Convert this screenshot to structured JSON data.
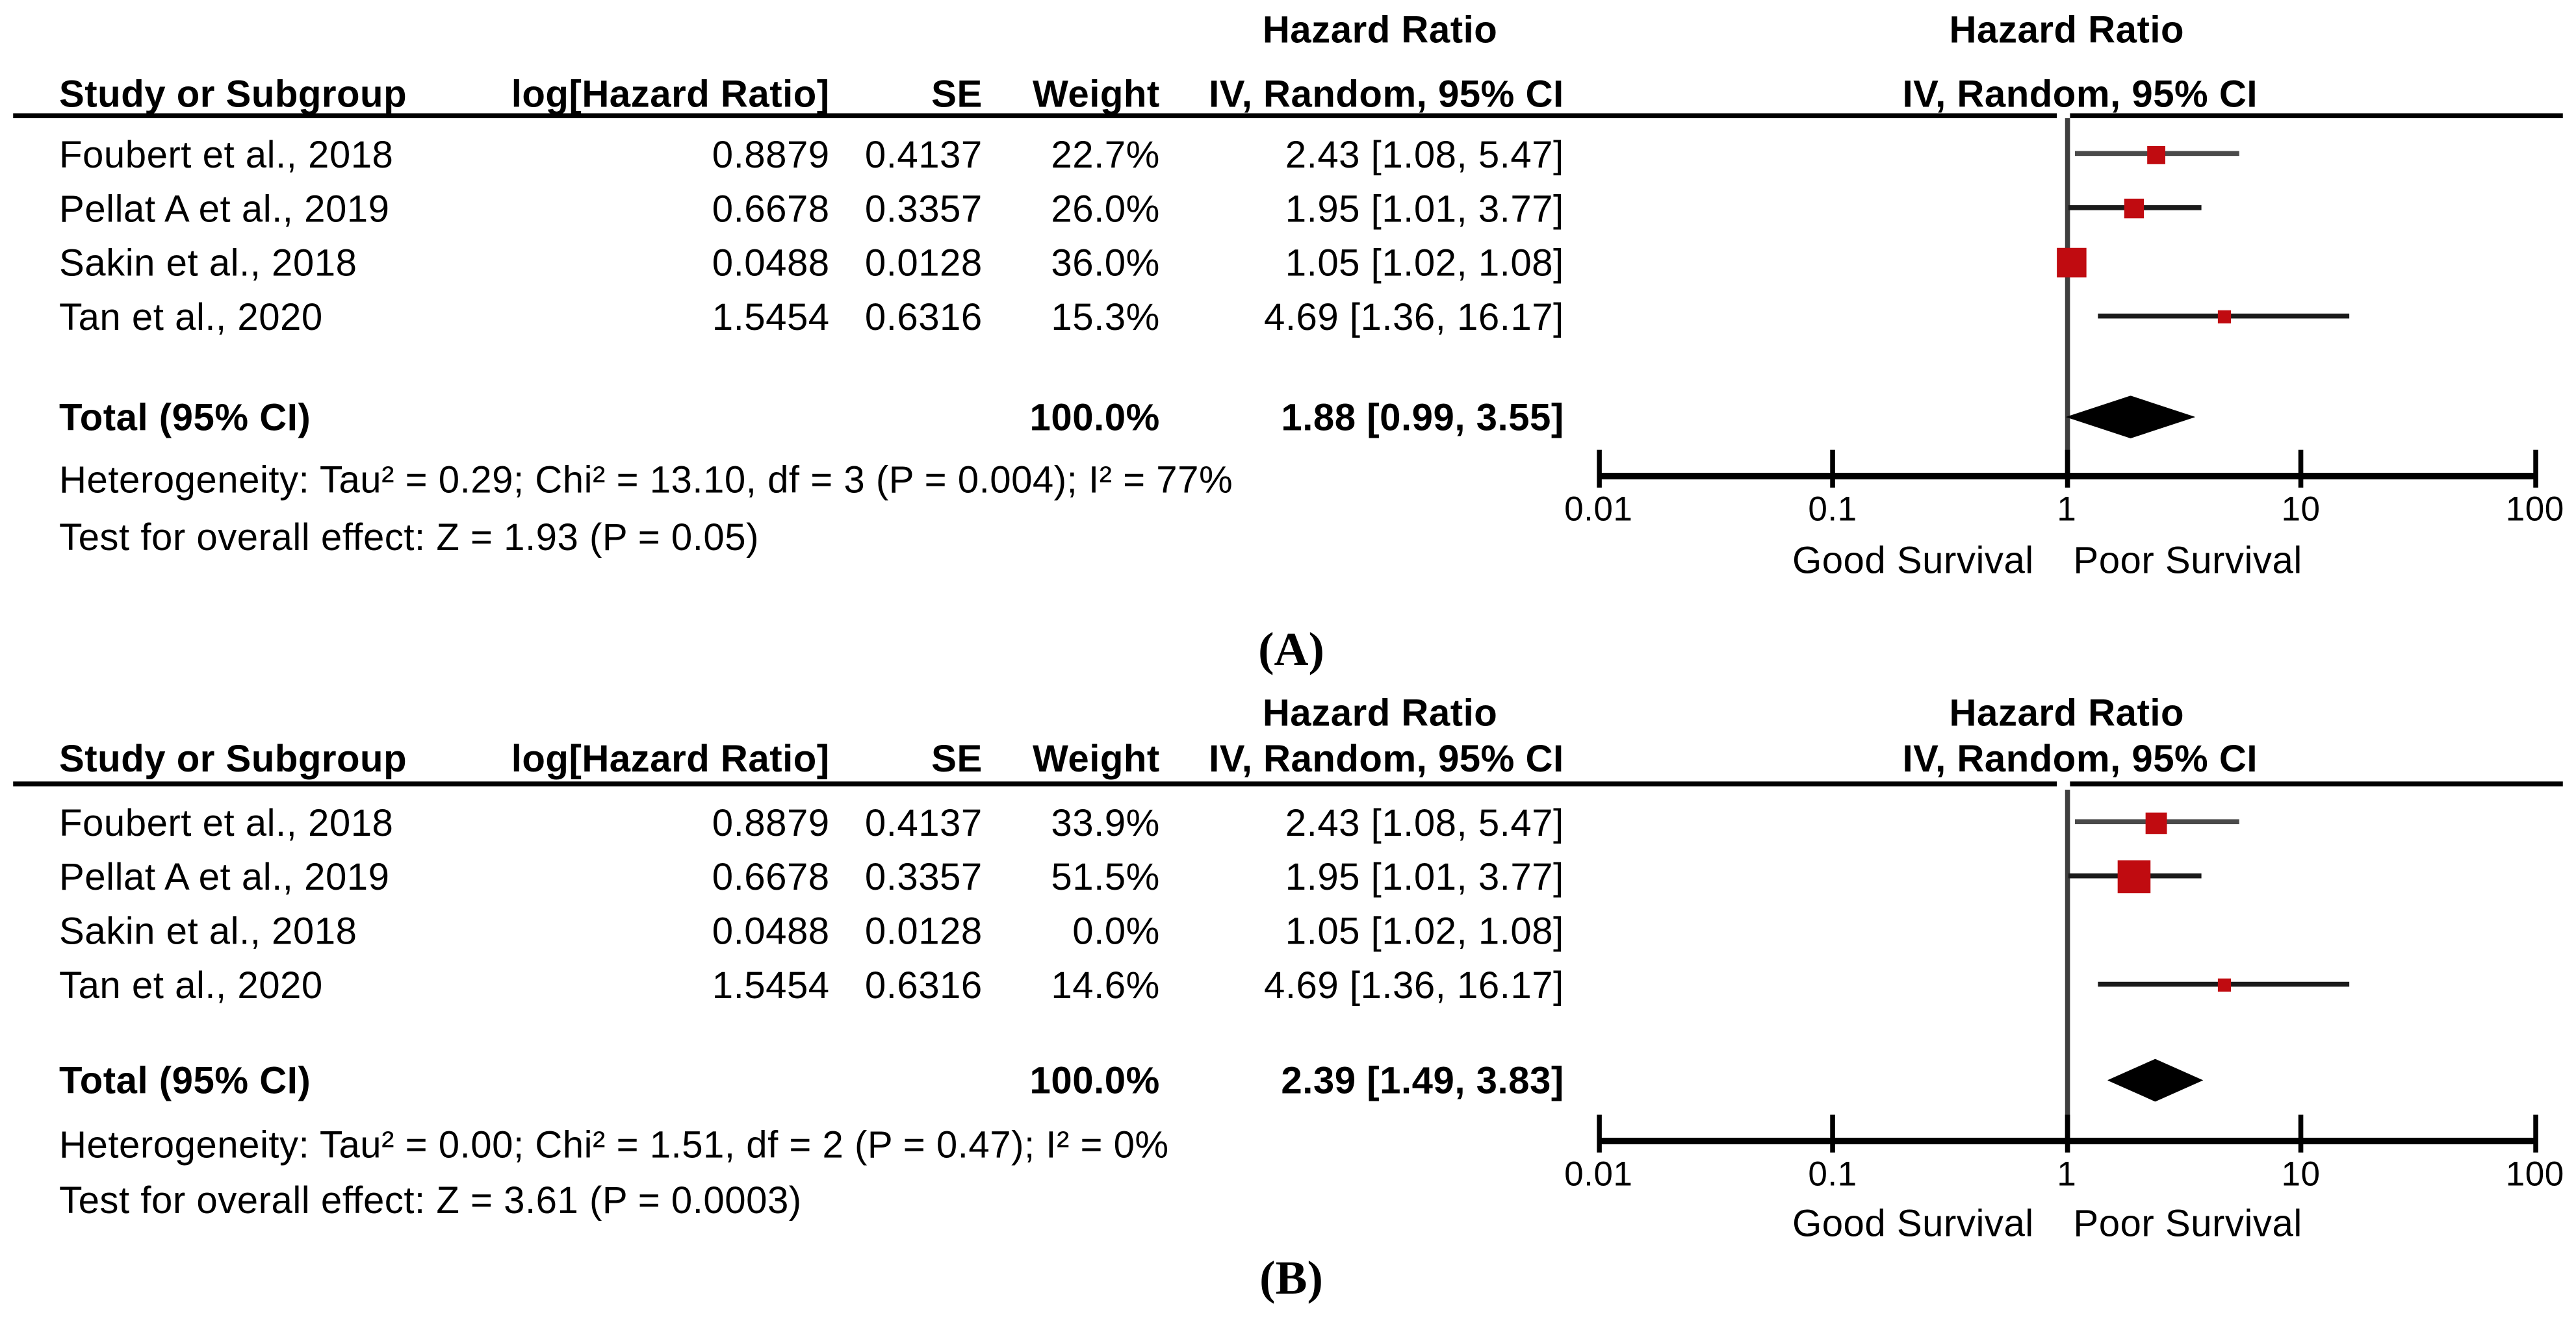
{
  "figure_type": "forest-plot-meta-analysis",
  "chart_data": [
    {
      "type": "forest",
      "panel_label": "(A)",
      "col_headers": {
        "study": "Study or Subgroup",
        "log_hr": "log[Hazard Ratio]",
        "se": "SE",
        "weight": "Weight",
        "effect_top": "Hazard Ratio",
        "effect": "IV, Random, 95% CI"
      },
      "plot_headers": {
        "top": "Hazard Ratio",
        "sub": "IV, Random, 95% CI"
      },
      "studies": [
        {
          "name": "Foubert et al., 2018",
          "log_hr": "0.8879",
          "se": "0.4137",
          "weight": "22.7%",
          "effect": "2.43 [1.08, 5.47]",
          "hr": 2.43,
          "ci_low": 1.08,
          "ci_high": 5.47,
          "marker_px": 11,
          "ci_color": "#4a4a4a"
        },
        {
          "name": "Pellat A et al., 2019",
          "log_hr": "0.6678",
          "se": "0.3357",
          "weight": "26.0%",
          "effect": "1.95 [1.01, 3.77]",
          "hr": 1.95,
          "ci_low": 1.01,
          "ci_high": 3.77,
          "marker_px": 12,
          "ci_color": "#1a1a1a"
        },
        {
          "name": "Sakin et al., 2018",
          "log_hr": "0.0488",
          "se": "0.0128",
          "weight": "36.0%",
          "effect": "1.05 [1.02, 1.08]",
          "hr": 1.05,
          "ci_low": 1.02,
          "ci_high": 1.08,
          "marker_px": 18,
          "ci_color": "#1a1a1a"
        },
        {
          "name": "Tan et al., 2020",
          "log_hr": "1.5454",
          "se": "0.6316",
          "weight": "15.3%",
          "effect": "4.69 [1.36, 16.17]",
          "hr": 4.69,
          "ci_low": 1.36,
          "ci_high": 16.17,
          "marker_px": 8,
          "ci_color": "#1a1a1a"
        }
      ],
      "total": {
        "label": "Total (95% CI)",
        "weight": "100.0%",
        "effect": "1.88 [0.99, 3.55]",
        "hr": 1.88,
        "ci_low": 0.99,
        "ci_high": 3.55
      },
      "heterogeneity": "Heterogeneity: Tau² = 0.29; Chi² = 13.10, df = 3 (P = 0.004); I² = 77%",
      "overall_effect": "Test for overall effect: Z = 1.93 (P = 0.05)",
      "axis": {
        "scale": "log",
        "tick_labels": [
          "0.01",
          "0.1",
          "1",
          "10",
          "100"
        ],
        "tick_values": [
          0.01,
          0.1,
          1,
          10,
          100
        ],
        "left_label": "Good Survival",
        "right_label": "Poor Survival"
      },
      "marker_color": "#c00b10",
      "diamond_color": "#000000"
    },
    {
      "type": "forest",
      "panel_label": "(B)",
      "col_headers": {
        "study": "Study or Subgroup",
        "log_hr": "log[Hazard Ratio]",
        "se": "SE",
        "weight": "Weight",
        "effect_top": "Hazard Ratio",
        "effect": "IV, Random, 95% CI"
      },
      "plot_headers": {
        "top": "Hazard Ratio",
        "sub": "IV, Random, 95% CI"
      },
      "studies": [
        {
          "name": "Foubert et al., 2018",
          "log_hr": "0.8879",
          "se": "0.4137",
          "weight": "33.9%",
          "effect": "2.43 [1.08, 5.47]",
          "hr": 2.43,
          "ci_low": 1.08,
          "ci_high": 5.47,
          "marker_px": 13,
          "ci_color": "#4a4a4a"
        },
        {
          "name": "Pellat A et al., 2019",
          "log_hr": "0.6678",
          "se": "0.3357",
          "weight": "51.5%",
          "effect": "1.95 [1.01, 3.77]",
          "hr": 1.95,
          "ci_low": 1.01,
          "ci_high": 3.77,
          "marker_px": 20,
          "ci_color": "#1a1a1a"
        },
        {
          "name": "Sakin et al., 2018",
          "log_hr": "0.0488",
          "se": "0.0128",
          "weight": "0.0%",
          "effect": "1.05 [1.02, 1.08]",
          "hr": 1.05,
          "ci_low": 1.02,
          "ci_high": 1.08,
          "marker_px": 0,
          "ci_color": "#1a1a1a"
        },
        {
          "name": "Tan et al., 2020",
          "log_hr": "1.5454",
          "se": "0.6316",
          "weight": "14.6%",
          "effect": "4.69 [1.36, 16.17]",
          "hr": 4.69,
          "ci_low": 1.36,
          "ci_high": 16.17,
          "marker_px": 8,
          "ci_color": "#1a1a1a"
        }
      ],
      "total": {
        "label": "Total (95% CI)",
        "weight": "100.0%",
        "effect": "2.39 [1.49, 3.83]",
        "hr": 2.39,
        "ci_low": 1.49,
        "ci_high": 3.83
      },
      "heterogeneity": "Heterogeneity: Tau² = 0.00; Chi² = 1.51, df = 2 (P = 0.47); I² = 0%",
      "overall_effect": "Test for overall effect: Z = 3.61 (P = 0.0003)",
      "axis": {
        "scale": "log",
        "tick_labels": [
          "0.01",
          "0.1",
          "1",
          "10",
          "100"
        ],
        "tick_values": [
          0.01,
          0.1,
          1,
          10,
          100
        ],
        "left_label": "Good Survival",
        "right_label": "Poor Survival"
      },
      "marker_color": "#c00b10",
      "diamond_color": "#000000"
    }
  ]
}
